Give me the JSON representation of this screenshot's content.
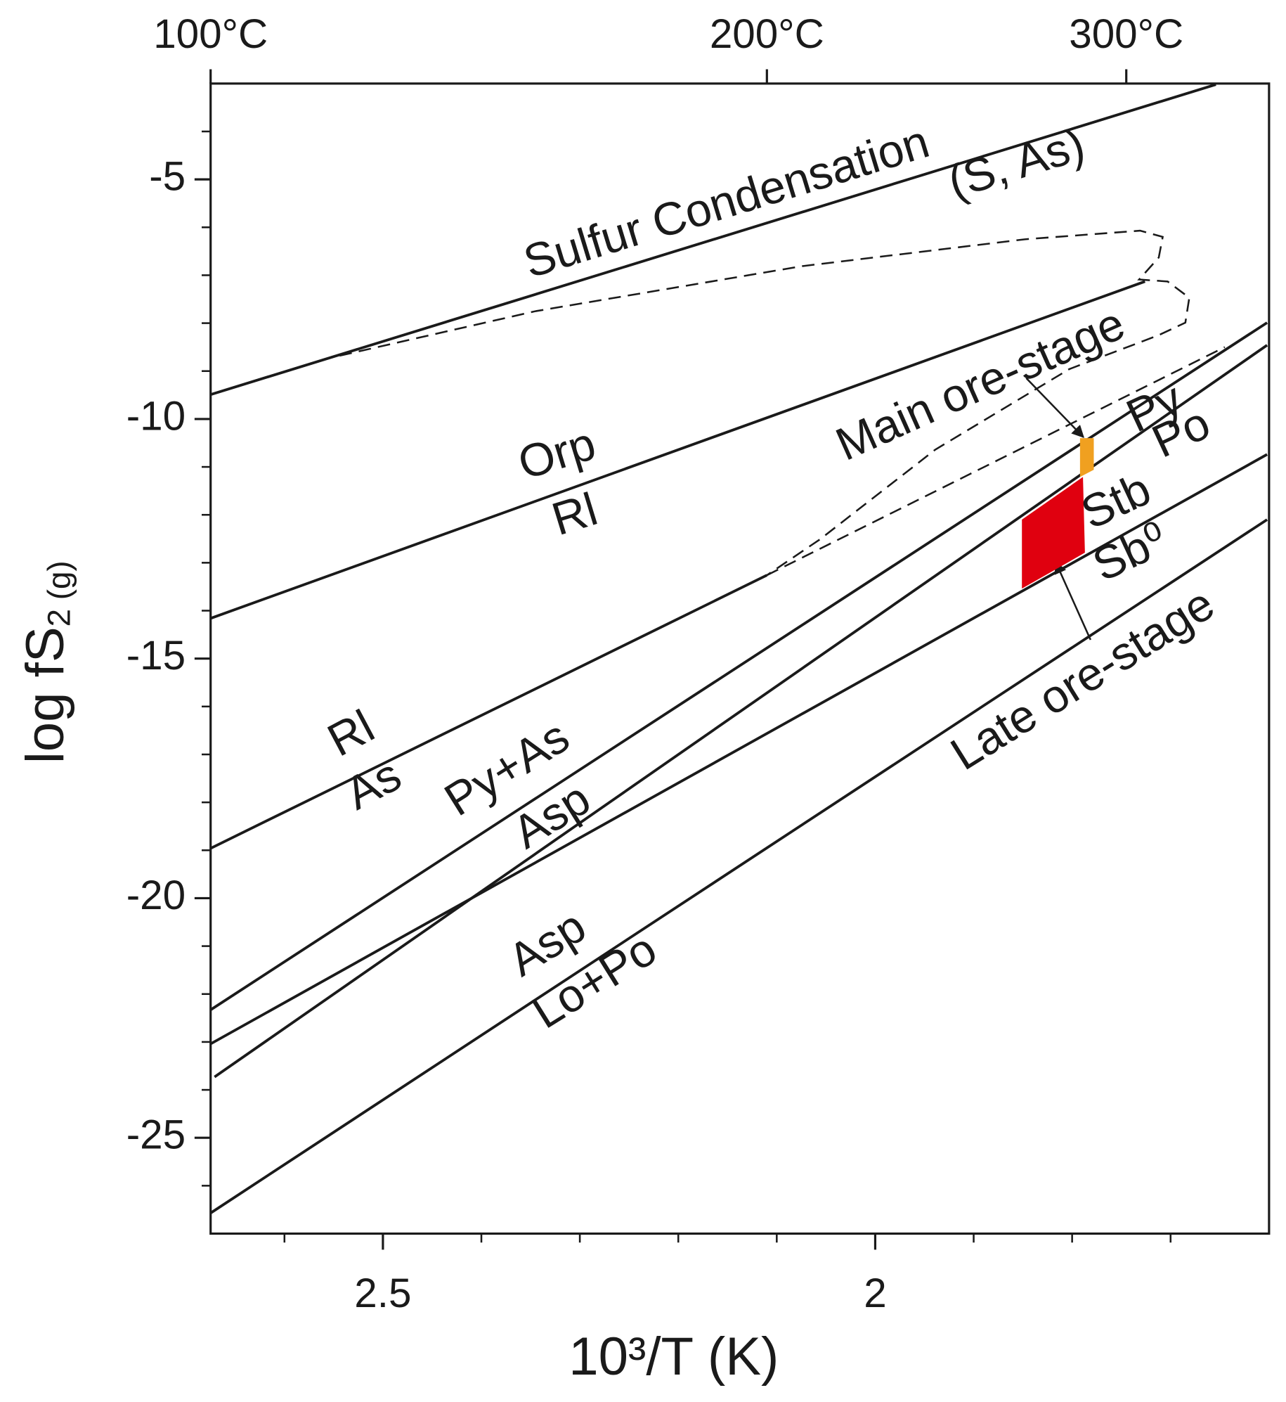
{
  "chart_data": {
    "type": "phase-diagram",
    "xlabel": "10³/T (K)",
    "ylabel": {
      "text": "log fS",
      "sub": "2 (g)"
    },
    "xlim": [
      2.675,
      1.6
    ],
    "ylim": [
      -27,
      -3
    ],
    "xticks": [
      2.5,
      2.0
    ],
    "xminorticks": [
      2.6,
      2.4,
      2.3,
      2.2,
      2.1,
      1.9,
      1.8,
      1.7
    ],
    "yticks": [
      -5,
      -10,
      -15,
      -20,
      -25
    ],
    "yminorticks": [
      -4,
      -6,
      -7,
      -8,
      -9,
      -11,
      -12,
      -13,
      -14,
      -16,
      -17,
      -18,
      -19,
      -21,
      -22,
      -23,
      -24,
      -26
    ],
    "x2ticks": [
      {
        "value": 2.675,
        "label": "100°C"
      },
      {
        "value": 2.11,
        "label": "200°C"
      },
      {
        "value": 1.745,
        "label": "300°C"
      }
    ],
    "line_color": "#1a1a1a",
    "lines": [
      {
        "x": [
          2.675,
          1.654
        ],
        "y": [
          -9.49,
          -3.02
        ]
      },
      {
        "x": [
          2.675,
          1.726
        ],
        "y": [
          -14.16,
          -7.13
        ]
      },
      {
        "x": [
          2.675,
          2.11
        ],
        "y": [
          -18.96,
          -13.26
        ]
      },
      {
        "x": [
          2.675,
          1.602
        ],
        "y": [
          -22.33,
          -7.99
        ]
      },
      {
        "x": [
          2.671,
          1.602
        ],
        "y": [
          -23.73,
          -8.46
        ]
      },
      {
        "x": [
          2.675,
          1.602
        ],
        "y": [
          -23.04,
          -10.74
        ]
      },
      {
        "x": [
          2.675,
          1.602
        ],
        "y": [
          -26.57,
          -12.1
        ]
      }
    ],
    "dashed_lines": [
      {
        "x": [
          2.11,
          1.645
        ],
        "y": [
          -13.26,
          -8.5
        ]
      },
      {
        "x": [
          2.544,
          2.345,
          2.074,
          1.848,
          1.731,
          1.708,
          1.712,
          1.732,
          1.703,
          1.681,
          1.685,
          1.712,
          1.803,
          1.939,
          2.056,
          2.11
        ],
        "y": [
          -8.68,
          -7.75,
          -6.81,
          -6.25,
          -6.07,
          -6.2,
          -6.63,
          -7.09,
          -7.13,
          -7.47,
          -7.99,
          -8.25,
          -8.96,
          -10.64,
          -12.51,
          -13.26
        ]
      }
    ],
    "regions": [
      {
        "color": "#f0a020",
        "x": [
          1.792,
          1.778,
          1.778,
          1.792
        ],
        "y": [
          -10.4,
          -10.4,
          -11.06,
          -11.21
        ]
      },
      {
        "color": "#e0000f",
        "x": [
          1.851,
          1.789,
          1.787,
          1.851
        ],
        "y": [
          -12.1,
          -11.21,
          -12.79,
          -13.54
        ]
      }
    ],
    "annotations": [
      "Sulfur Condensation",
      "(S, As)",
      "Orp",
      "Rl",
      "Main ore-stage",
      "Py",
      "Po",
      "Stb",
      "Sb⁰",
      "Late ore-stage",
      "Rl",
      "As",
      "Py+As",
      "Asp",
      "Asp",
      "Lo+Po"
    ]
  }
}
